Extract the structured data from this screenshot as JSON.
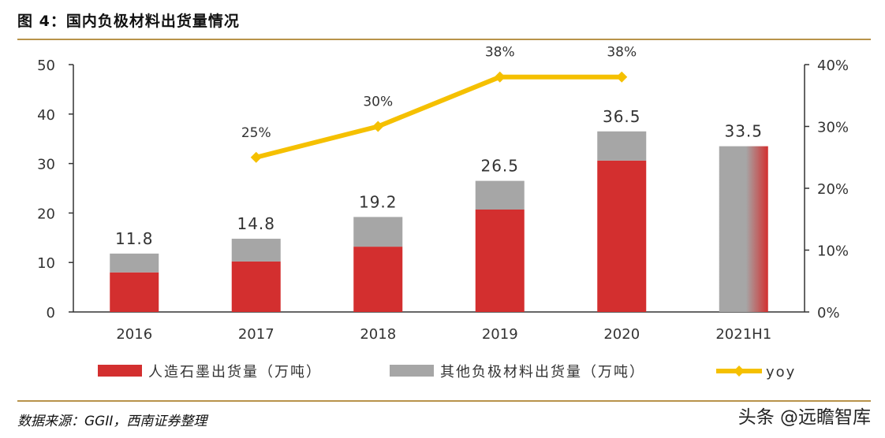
{
  "figure": {
    "title": "图 4：国内负极材料出货量情况",
    "source": "数据来源：GGII，西南证券整理",
    "watermark": "头条 @远瞻智库"
  },
  "colors": {
    "artificial": "#d32f2f",
    "other": "#a6a6a6",
    "yoy": "#f5c000",
    "axis": "#333333",
    "rule": "#b8934a"
  },
  "chart_data": {
    "type": "bar",
    "stacked": true,
    "categories": [
      "2016",
      "2017",
      "2018",
      "2019",
      "2020",
      "2021H1"
    ],
    "series": [
      {
        "name": "人造石墨出货量（万吨）",
        "axis": "left",
        "values": [
          8.0,
          10.2,
          13.2,
          20.7,
          30.6,
          33.5
        ]
      },
      {
        "name": "其他负极材料出货量（万吨）",
        "axis": "left",
        "values": [
          3.8,
          4.6,
          6.0,
          5.8,
          5.9,
          0
        ]
      },
      {
        "name": "yoy",
        "type": "line",
        "axis": "right",
        "values": [
          null,
          25,
          30,
          38,
          38,
          null
        ]
      }
    ],
    "totals": [
      11.8,
      14.8,
      19.2,
      26.5,
      36.5,
      33.5
    ],
    "total_labels": [
      "11.8",
      "14.8",
      "19.2",
      "26.5",
      "36.5",
      "33.5"
    ],
    "yoy_labels": [
      "",
      "25%",
      "30%",
      "38%",
      "38%",
      ""
    ],
    "left_axis": {
      "min": 0,
      "max": 50,
      "ticks": [
        0,
        10,
        20,
        30,
        40,
        50
      ]
    },
    "right_axis": {
      "min": 0,
      "max": 40,
      "ticks": [
        "0%",
        "10%",
        "20%",
        "30%",
        "40%"
      ]
    },
    "legend_position": "bottom",
    "grid": false
  }
}
